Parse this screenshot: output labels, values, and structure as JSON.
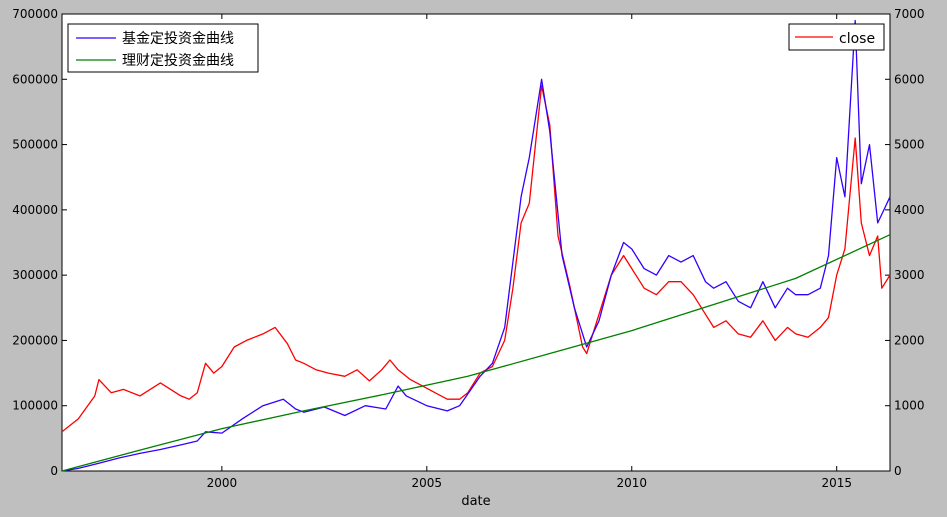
{
  "chart_data": {
    "type": "line",
    "xlabel": "date",
    "x_ticks": [
      "2000",
      "2005",
      "2010",
      "2015"
    ],
    "x_tick_values": [
      2000,
      2005,
      2010,
      2015
    ],
    "xlim": [
      1996.1,
      2016.3
    ],
    "left_axis": {
      "ylim": [
        0,
        700000
      ],
      "ticks": [
        "0",
        "100000",
        "200000",
        "300000",
        "400000",
        "500000",
        "600000",
        "700000"
      ],
      "tick_values": [
        0,
        100000,
        200000,
        300000,
        400000,
        500000,
        600000,
        700000
      ]
    },
    "right_axis": {
      "ylim": [
        0,
        7000
      ],
      "ticks": [
        "0",
        "1000",
        "2000",
        "3000",
        "4000",
        "5000",
        "6000",
        "7000"
      ],
      "tick_values": [
        0,
        1000,
        2000,
        3000,
        4000,
        5000,
        6000,
        7000
      ]
    },
    "legend_left": {
      "placement": "upper-left",
      "entries": [
        "基金定投资金曲线",
        "理财定投资金曲线"
      ]
    },
    "legend_right": {
      "placement": "upper-right",
      "entries": [
        "close"
      ]
    },
    "series": [
      {
        "name": "基金定投资金曲线",
        "axis": "left",
        "color": "#3300ff",
        "x": [
          1996.1,
          1996.5,
          1997.0,
          1997.5,
          1998.0,
          1998.5,
          1999.0,
          1999.4,
          1999.6,
          2000.0,
          2000.5,
          2001.0,
          2001.5,
          2001.8,
          2002.0,
          2002.5,
          2003.0,
          2003.5,
          2004.0,
          2004.3,
          2004.5,
          2005.0,
          2005.5,
          2005.8,
          2006.0,
          2006.3,
          2006.6,
          2006.9,
          2007.1,
          2007.3,
          2007.5,
          2007.8,
          2008.0,
          2008.3,
          2008.6,
          2008.9,
          2009.2,
          2009.5,
          2009.8,
          2010.0,
          2010.3,
          2010.6,
          2010.9,
          2011.2,
          2011.5,
          2011.8,
          2012.0,
          2012.3,
          2012.6,
          2012.9,
          2013.2,
          2013.5,
          2013.8,
          2014.0,
          2014.3,
          2014.6,
          2014.8,
          2015.0,
          2015.2,
          2015.45,
          2015.6,
          2015.8,
          2016.0,
          2016.15,
          2016.3
        ],
        "values": [
          0,
          4000,
          12000,
          20000,
          27000,
          33000,
          40000,
          46000,
          60000,
          58000,
          80000,
          100000,
          110000,
          95000,
          90000,
          98000,
          85000,
          100000,
          95000,
          130000,
          115000,
          100000,
          92000,
          100000,
          118000,
          145000,
          165000,
          220000,
          320000,
          420000,
          480000,
          600000,
          520000,
          330000,
          250000,
          190000,
          230000,
          300000,
          350000,
          340000,
          310000,
          300000,
          330000,
          320000,
          330000,
          290000,
          280000,
          290000,
          260000,
          250000,
          290000,
          250000,
          280000,
          270000,
          270000,
          280000,
          330000,
          480000,
          420000,
          690000,
          440000,
          500000,
          380000,
          400000,
          420000
        ]
      },
      {
        "name": "理财定投资金曲线",
        "axis": "left",
        "color": "#008000",
        "x": [
          1996.1,
          1998.0,
          2000.0,
          2002.0,
          2004.0,
          2006.0,
          2008.0,
          2010.0,
          2012.0,
          2014.0,
          2016.3
        ],
        "values": [
          0,
          32000,
          65000,
          92000,
          118000,
          145000,
          180000,
          215000,
          255000,
          295000,
          362000
        ]
      },
      {
        "name": "close",
        "axis": "right",
        "color": "#ff0000",
        "x": [
          1996.1,
          1996.5,
          1996.9,
          1997.0,
          1997.3,
          1997.6,
          1998.0,
          1998.5,
          1999.0,
          1999.2,
          1999.4,
          1999.6,
          1999.8,
          2000.0,
          2000.3,
          2000.6,
          2001.0,
          2001.3,
          2001.6,
          2001.8,
          2002.0,
          2002.3,
          2002.6,
          2003.0,
          2003.3,
          2003.6,
          2003.9,
          2004.1,
          2004.3,
          2004.6,
          2004.9,
          2005.2,
          2005.5,
          2005.8,
          2006.0,
          2006.3,
          2006.6,
          2006.9,
          2007.1,
          2007.3,
          2007.5,
          2007.8,
          2008.0,
          2008.2,
          2008.5,
          2008.8,
          2008.9,
          2009.2,
          2009.5,
          2009.8,
          2010.0,
          2010.3,
          2010.6,
          2010.9,
          2011.2,
          2011.5,
          2011.8,
          2012.0,
          2012.3,
          2012.6,
          2012.9,
          2013.2,
          2013.5,
          2013.8,
          2014.0,
          2014.3,
          2014.6,
          2014.8,
          2015.0,
          2015.2,
          2015.45,
          2015.6,
          2015.8,
          2016.0,
          2016.1,
          2016.3
        ],
        "values": [
          600,
          800,
          1150,
          1400,
          1200,
          1250,
          1150,
          1350,
          1150,
          1100,
          1200,
          1650,
          1500,
          1600,
          1900,
          2000,
          2100,
          2200,
          1950,
          1700,
          1650,
          1550,
          1500,
          1450,
          1550,
          1380,
          1550,
          1700,
          1550,
          1400,
          1300,
          1200,
          1100,
          1100,
          1200,
          1500,
          1600,
          2000,
          2800,
          3800,
          4100,
          5900,
          5300,
          3600,
          2800,
          1900,
          1800,
          2400,
          3000,
          3300,
          3100,
          2800,
          2700,
          2900,
          2900,
          2700,
          2400,
          2200,
          2300,
          2100,
          2050,
          2300,
          2000,
          2200,
          2100,
          2050,
          2200,
          2350,
          3000,
          3400,
          5100,
          3800,
          3300,
          3600,
          2800,
          3000
        ]
      }
    ]
  }
}
